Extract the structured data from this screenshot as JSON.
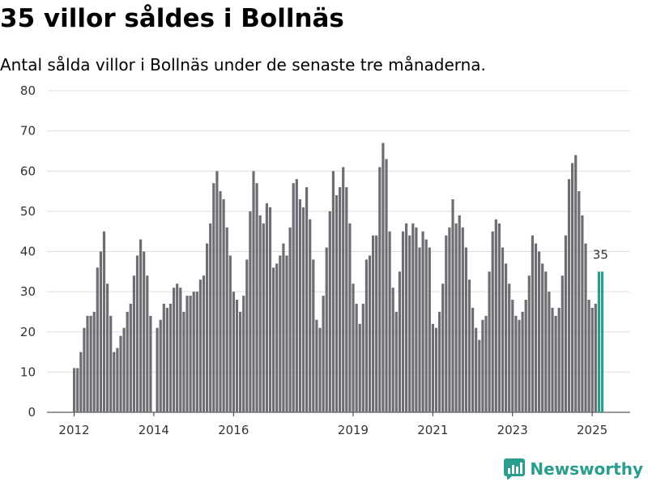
{
  "chart_data": {
    "type": "bar",
    "title": "35 villor såldes i Bollnäs",
    "subtitle": "Antal sålda villor i Bollnäs under de senaste tre månaderna.",
    "start": "2012-01",
    "values": [
      11,
      11,
      15,
      21,
      24,
      24,
      25,
      36,
      40,
      45,
      32,
      24,
      15,
      16,
      19,
      21,
      25,
      27,
      34,
      39,
      43,
      40,
      34,
      24,
      0,
      21,
      23,
      27,
      26,
      27,
      31,
      32,
      31,
      25,
      29,
      29,
      30,
      30,
      33,
      34,
      42,
      47,
      57,
      60,
      55,
      53,
      46,
      39,
      30,
      28,
      25,
      29,
      38,
      50,
      60,
      57,
      49,
      47,
      52,
      51,
      36,
      37,
      39,
      42,
      39,
      46,
      57,
      58,
      53,
      51,
      56,
      48,
      38,
      23,
      21,
      29,
      41,
      50,
      60,
      54,
      56,
      61,
      56,
      47,
      32,
      27,
      22,
      27,
      38,
      39,
      44,
      44,
      61,
      67,
      63,
      45,
      31,
      25,
      35,
      45,
      47,
      44,
      47,
      46,
      41,
      45,
      43,
      41,
      22,
      21,
      25,
      32,
      44,
      46,
      53,
      47,
      49,
      46,
      41,
      33,
      26,
      21,
      18,
      23,
      24,
      35,
      45,
      48,
      47,
      41,
      37,
      32,
      28,
      24,
      23,
      25,
      28,
      34,
      44,
      42,
      40,
      37,
      35,
      30,
      26,
      24,
      26,
      34,
      44,
      58,
      62,
      64,
      55,
      49,
      42,
      28,
      26,
      27,
      35,
      35
    ],
    "highlight_label": "35",
    "xticks": [
      "2012",
      "2014",
      "2016",
      "2019",
      "2021",
      "2023",
      "2025"
    ],
    "ylim": [
      0,
      80
    ],
    "yticks": [
      0,
      10,
      20,
      30,
      40,
      50,
      60,
      70,
      80
    ],
    "grid": true,
    "colors": {
      "bar": "#6e6d73",
      "highlight": "#2a9d8f"
    }
  },
  "branding": {
    "name": "Newsworthy"
  }
}
